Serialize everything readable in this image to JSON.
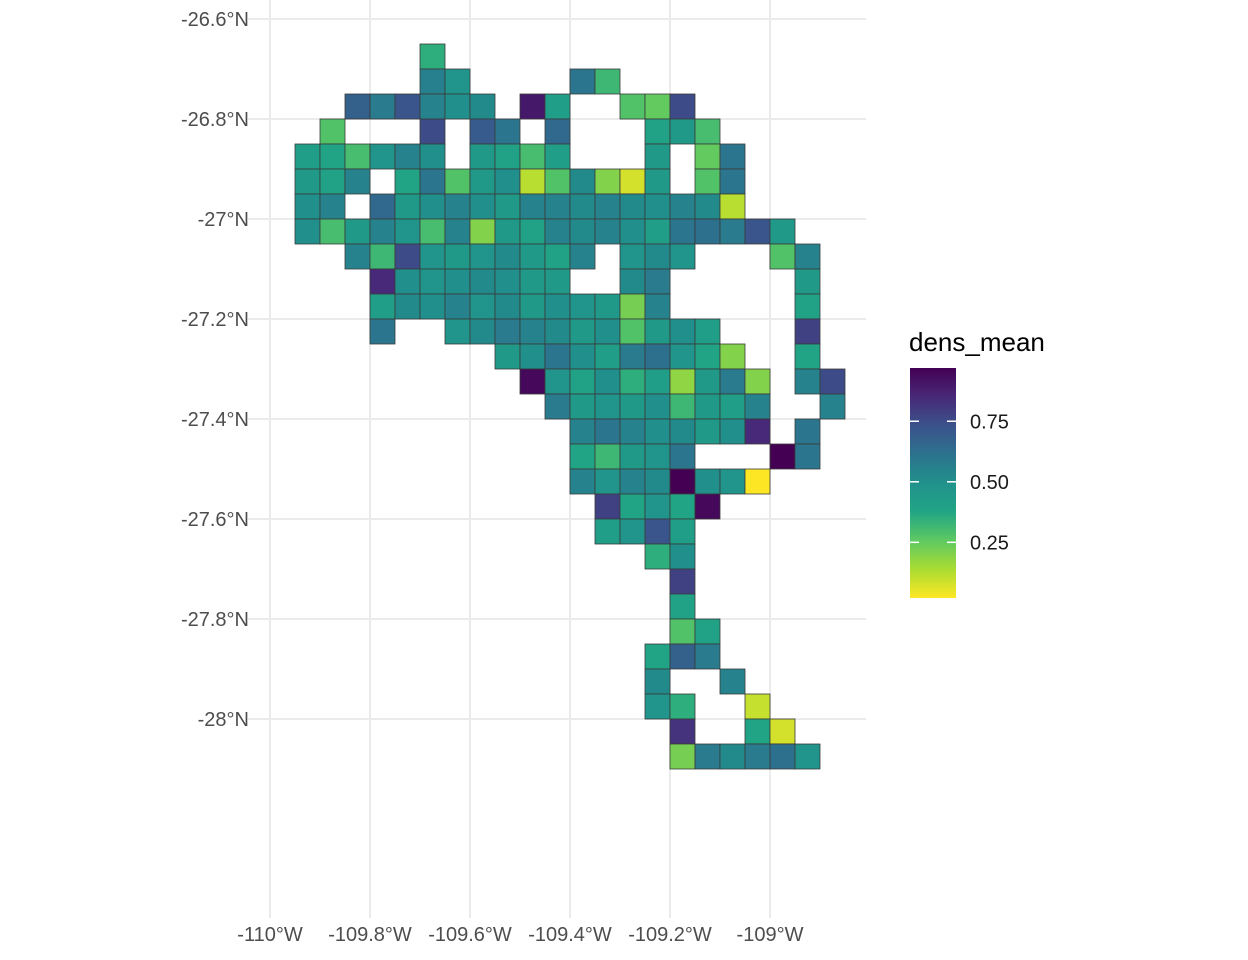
{
  "chart_data": {
    "type": "heatmap",
    "subtype": "geographic grid map",
    "fill_variable": "dens_mean",
    "x_ticks": [
      {
        "value": -110.0,
        "label": "-110°W"
      },
      {
        "value": -109.8,
        "label": "-109.8°W"
      },
      {
        "value": -109.6,
        "label": "-109.6°W"
      },
      {
        "value": -109.4,
        "label": "-109.4°W"
      },
      {
        "value": -109.2,
        "label": "-109.2°W"
      },
      {
        "value": -109.0,
        "label": "-109°W"
      }
    ],
    "y_ticks": [
      {
        "value": -26.6,
        "label": "-26.6°N"
      },
      {
        "value": -26.8,
        "label": "-26.8°N"
      },
      {
        "value": -27.0,
        "label": "-27°N"
      },
      {
        "value": -27.2,
        "label": "-27.2°N"
      },
      {
        "value": -27.4,
        "label": "-27.4°N"
      },
      {
        "value": -27.6,
        "label": "-27.6°N"
      },
      {
        "value": -27.8,
        "label": "-27.8°N"
      },
      {
        "value": -28.0,
        "label": "-28°N"
      }
    ],
    "xlim": [
      -110.0,
      -108.8
    ],
    "ylim": [
      -28.2,
      -26.6
    ],
    "cell_size_deg": 0.05,
    "x0": -109.95,
    "y0": -26.65,
    "grid": true,
    "legend": {
      "title": "dens_mean",
      "position": "right",
      "colormap": "viridis (reversed: yellow = low, purple = high)",
      "range": [
        0.02,
        0.97
      ],
      "breaks": [
        {
          "value": 0.75,
          "label": "0.75"
        },
        {
          "value": 0.5,
          "label": "0.50"
        },
        {
          "value": 0.25,
          "label": "0.25"
        }
      ]
    },
    "cells_note": "each cell: [column index from x0, row index from y0 going south, dens_mean]",
    "cells": [
      [
        5,
        0,
        0.35
      ],
      [
        5,
        1,
        0.56
      ],
      [
        6,
        1,
        0.48
      ],
      [
        11,
        1,
        0.6
      ],
      [
        12,
        1,
        0.32
      ],
      [
        2,
        2,
        0.68
      ],
      [
        3,
        2,
        0.58
      ],
      [
        4,
        2,
        0.72
      ],
      [
        5,
        2,
        0.55
      ],
      [
        6,
        2,
        0.5
      ],
      [
        7,
        2,
        0.52
      ],
      [
        9,
        2,
        0.9
      ],
      [
        10,
        2,
        0.42
      ],
      [
        13,
        2,
        0.28
      ],
      [
        14,
        2,
        0.25
      ],
      [
        15,
        2,
        0.75
      ],
      [
        1,
        3,
        0.28
      ],
      [
        5,
        3,
        0.75
      ],
      [
        7,
        3,
        0.7
      ],
      [
        8,
        3,
        0.6
      ],
      [
        10,
        3,
        0.65
      ],
      [
        14,
        3,
        0.4
      ],
      [
        15,
        3,
        0.45
      ],
      [
        16,
        3,
        0.3
      ],
      [
        0,
        4,
        0.42
      ],
      [
        1,
        4,
        0.38
      ],
      [
        2,
        4,
        0.3
      ],
      [
        3,
        4,
        0.48
      ],
      [
        4,
        4,
        0.55
      ],
      [
        5,
        4,
        0.5
      ],
      [
        7,
        4,
        0.45
      ],
      [
        8,
        4,
        0.4
      ],
      [
        9,
        4,
        0.3
      ],
      [
        10,
        4,
        0.42
      ],
      [
        14,
        4,
        0.45
      ],
      [
        16,
        4,
        0.25
      ],
      [
        17,
        4,
        0.6
      ],
      [
        0,
        5,
        0.45
      ],
      [
        1,
        5,
        0.4
      ],
      [
        2,
        5,
        0.55
      ],
      [
        4,
        5,
        0.38
      ],
      [
        5,
        5,
        0.6
      ],
      [
        6,
        5,
        0.28
      ],
      [
        7,
        5,
        0.45
      ],
      [
        8,
        5,
        0.5
      ],
      [
        9,
        5,
        0.12
      ],
      [
        10,
        5,
        0.28
      ],
      [
        11,
        5,
        0.52
      ],
      [
        12,
        5,
        0.2
      ],
      [
        13,
        5,
        0.08
      ],
      [
        14,
        5,
        0.45
      ],
      [
        16,
        5,
        0.28
      ],
      [
        17,
        5,
        0.6
      ],
      [
        0,
        6,
        0.5
      ],
      [
        1,
        6,
        0.55
      ],
      [
        3,
        6,
        0.65
      ],
      [
        4,
        6,
        0.45
      ],
      [
        5,
        6,
        0.5
      ],
      [
        6,
        6,
        0.55
      ],
      [
        7,
        6,
        0.5
      ],
      [
        8,
        6,
        0.45
      ],
      [
        9,
        6,
        0.55
      ],
      [
        10,
        6,
        0.55
      ],
      [
        11,
        6,
        0.52
      ],
      [
        12,
        6,
        0.55
      ],
      [
        13,
        6,
        0.52
      ],
      [
        14,
        6,
        0.5
      ],
      [
        15,
        6,
        0.55
      ],
      [
        16,
        6,
        0.52
      ],
      [
        17,
        6,
        0.12
      ],
      [
        0,
        7,
        0.5
      ],
      [
        1,
        7,
        0.3
      ],
      [
        2,
        7,
        0.45
      ],
      [
        3,
        7,
        0.55
      ],
      [
        4,
        7,
        0.48
      ],
      [
        5,
        7,
        0.3
      ],
      [
        6,
        7,
        0.55
      ],
      [
        7,
        7,
        0.2
      ],
      [
        8,
        7,
        0.45
      ],
      [
        9,
        7,
        0.4
      ],
      [
        10,
        7,
        0.55
      ],
      [
        11,
        7,
        0.52
      ],
      [
        12,
        7,
        0.55
      ],
      [
        13,
        7,
        0.5
      ],
      [
        14,
        7,
        0.42
      ],
      [
        15,
        7,
        0.6
      ],
      [
        16,
        7,
        0.62
      ],
      [
        17,
        7,
        0.58
      ],
      [
        18,
        7,
        0.72
      ],
      [
        19,
        7,
        0.45
      ],
      [
        2,
        8,
        0.55
      ],
      [
        3,
        8,
        0.32
      ],
      [
        4,
        8,
        0.75
      ],
      [
        5,
        8,
        0.48
      ],
      [
        6,
        8,
        0.45
      ],
      [
        7,
        8,
        0.48
      ],
      [
        8,
        8,
        0.52
      ],
      [
        9,
        8,
        0.45
      ],
      [
        10,
        8,
        0.4
      ],
      [
        11,
        8,
        0.55
      ],
      [
        13,
        8,
        0.48
      ],
      [
        14,
        8,
        0.52
      ],
      [
        15,
        8,
        0.48
      ],
      [
        19,
        8,
        0.28
      ],
      [
        20,
        8,
        0.55
      ],
      [
        3,
        9,
        0.85
      ],
      [
        4,
        9,
        0.5
      ],
      [
        5,
        9,
        0.48
      ],
      [
        6,
        9,
        0.5
      ],
      [
        7,
        9,
        0.52
      ],
      [
        8,
        9,
        0.5
      ],
      [
        9,
        9,
        0.45
      ],
      [
        10,
        9,
        0.45
      ],
      [
        13,
        9,
        0.52
      ],
      [
        14,
        9,
        0.58
      ],
      [
        20,
        9,
        0.45
      ],
      [
        3,
        10,
        0.42
      ],
      [
        4,
        10,
        0.52
      ],
      [
        5,
        10,
        0.5
      ],
      [
        6,
        10,
        0.55
      ],
      [
        7,
        10,
        0.48
      ],
      [
        8,
        10,
        0.52
      ],
      [
        9,
        10,
        0.45
      ],
      [
        10,
        10,
        0.5
      ],
      [
        11,
        10,
        0.48
      ],
      [
        12,
        10,
        0.45
      ],
      [
        13,
        10,
        0.22
      ],
      [
        14,
        10,
        0.55
      ],
      [
        20,
        10,
        0.4
      ],
      [
        3,
        11,
        0.6
      ],
      [
        6,
        11,
        0.48
      ],
      [
        7,
        11,
        0.52
      ],
      [
        8,
        11,
        0.58
      ],
      [
        9,
        11,
        0.55
      ],
      [
        10,
        11,
        0.52
      ],
      [
        11,
        11,
        0.45
      ],
      [
        12,
        11,
        0.5
      ],
      [
        13,
        11,
        0.28
      ],
      [
        14,
        11,
        0.45
      ],
      [
        15,
        11,
        0.5
      ],
      [
        16,
        11,
        0.42
      ],
      [
        20,
        11,
        0.78
      ],
      [
        8,
        12,
        0.45
      ],
      [
        9,
        12,
        0.5
      ],
      [
        10,
        12,
        0.6
      ],
      [
        11,
        12,
        0.5
      ],
      [
        12,
        12,
        0.42
      ],
      [
        13,
        12,
        0.58
      ],
      [
        14,
        12,
        0.62
      ],
      [
        15,
        12,
        0.48
      ],
      [
        16,
        12,
        0.38
      ],
      [
        17,
        12,
        0.2
      ],
      [
        20,
        12,
        0.38
      ],
      [
        9,
        13,
        0.95
      ],
      [
        10,
        13,
        0.48
      ],
      [
        11,
        13,
        0.4
      ],
      [
        12,
        13,
        0.5
      ],
      [
        13,
        13,
        0.35
      ],
      [
        14,
        13,
        0.42
      ],
      [
        15,
        13,
        0.18
      ],
      [
        16,
        13,
        0.45
      ],
      [
        17,
        13,
        0.58
      ],
      [
        18,
        13,
        0.2
      ],
      [
        20,
        13,
        0.55
      ],
      [
        21,
        13,
        0.75
      ],
      [
        10,
        14,
        0.58
      ],
      [
        11,
        14,
        0.45
      ],
      [
        12,
        14,
        0.48
      ],
      [
        13,
        14,
        0.45
      ],
      [
        14,
        14,
        0.5
      ],
      [
        15,
        14,
        0.32
      ],
      [
        16,
        14,
        0.45
      ],
      [
        17,
        14,
        0.42
      ],
      [
        18,
        14,
        0.55
      ],
      [
        21,
        14,
        0.55
      ],
      [
        11,
        15,
        0.55
      ],
      [
        12,
        15,
        0.6
      ],
      [
        13,
        15,
        0.55
      ],
      [
        14,
        15,
        0.5
      ],
      [
        15,
        15,
        0.52
      ],
      [
        16,
        15,
        0.45
      ],
      [
        17,
        15,
        0.5
      ],
      [
        18,
        15,
        0.85
      ],
      [
        20,
        15,
        0.6
      ],
      [
        11,
        16,
        0.38
      ],
      [
        12,
        16,
        0.32
      ],
      [
        13,
        16,
        0.45
      ],
      [
        14,
        16,
        0.48
      ],
      [
        15,
        16,
        0.6
      ],
      [
        19,
        16,
        0.97
      ],
      [
        20,
        16,
        0.6
      ],
      [
        11,
        17,
        0.55
      ],
      [
        12,
        17,
        0.48
      ],
      [
        13,
        17,
        0.55
      ],
      [
        14,
        17,
        0.52
      ],
      [
        15,
        17,
        0.97
      ],
      [
        16,
        17,
        0.5
      ],
      [
        17,
        17,
        0.48
      ],
      [
        18,
        17,
        0.02
      ],
      [
        12,
        18,
        0.78
      ],
      [
        13,
        18,
        0.38
      ],
      [
        14,
        18,
        0.48
      ],
      [
        15,
        18,
        0.38
      ],
      [
        16,
        18,
        0.95
      ],
      [
        12,
        19,
        0.42
      ],
      [
        13,
        19,
        0.48
      ],
      [
        14,
        19,
        0.72
      ],
      [
        15,
        19,
        0.42
      ],
      [
        14,
        20,
        0.35
      ],
      [
        15,
        20,
        0.5
      ],
      [
        15,
        21,
        0.78
      ],
      [
        15,
        22,
        0.4
      ],
      [
        15,
        23,
        0.28
      ],
      [
        16,
        23,
        0.4
      ],
      [
        14,
        24,
        0.38
      ],
      [
        15,
        24,
        0.68
      ],
      [
        16,
        24,
        0.58
      ],
      [
        14,
        25,
        0.52
      ],
      [
        17,
        25,
        0.55
      ],
      [
        14,
        26,
        0.48
      ],
      [
        15,
        26,
        0.35
      ],
      [
        18,
        26,
        0.1
      ],
      [
        15,
        27,
        0.82
      ],
      [
        18,
        27,
        0.38
      ],
      [
        19,
        27,
        0.08
      ],
      [
        15,
        28,
        0.22
      ],
      [
        16,
        28,
        0.58
      ],
      [
        17,
        28,
        0.52
      ],
      [
        18,
        28,
        0.58
      ],
      [
        19,
        28,
        0.62
      ],
      [
        20,
        28,
        0.48
      ]
    ]
  }
}
